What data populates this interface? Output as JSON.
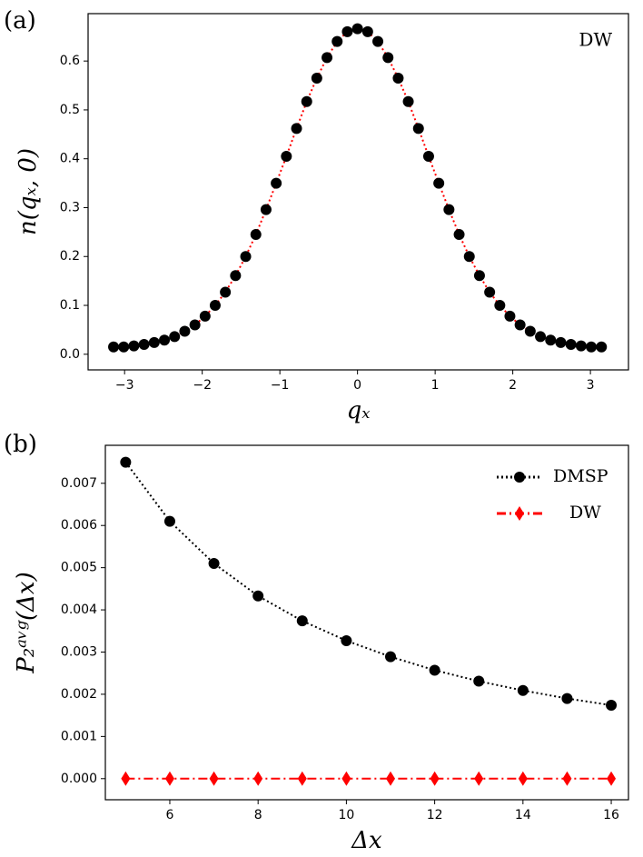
{
  "chart_data": [
    {
      "type": "scatter",
      "panel": "(a)",
      "annotation": "DW",
      "x_label": "qₓ",
      "y_label": "n(qₓ, 0)",
      "x": [
        -3.142,
        -3.011,
        -2.88,
        -2.749,
        -2.618,
        -2.487,
        -2.356,
        -2.225,
        -2.094,
        -1.963,
        -1.833,
        -1.702,
        -1.571,
        -1.44,
        -1.309,
        -1.178,
        -1.047,
        -0.916,
        -0.785,
        -0.654,
        -0.524,
        -0.393,
        -0.262,
        -0.131,
        0,
        0.131,
        0.262,
        0.393,
        0.524,
        0.654,
        0.785,
        0.916,
        1.047,
        1.178,
        1.309,
        1.44,
        1.571,
        1.702,
        1.833,
        1.963,
        2.094,
        2.225,
        2.356,
        2.487,
        2.618,
        2.749,
        2.88,
        3.011,
        3.142
      ],
      "series": [
        {
          "color": "#000000",
          "line_color": "#ff0000",
          "linestyle": "dotted",
          "marker": "circle",
          "values": [
            0.015,
            0.015,
            0.017,
            0.02,
            0.024,
            0.029,
            0.036,
            0.047,
            0.06,
            0.078,
            0.1,
            0.127,
            0.161,
            0.2,
            0.245,
            0.296,
            0.35,
            0.405,
            0.462,
            0.517,
            0.565,
            0.607,
            0.64,
            0.66,
            0.666,
            0.66,
            0.64,
            0.607,
            0.565,
            0.517,
            0.462,
            0.405,
            0.35,
            0.296,
            0.245,
            0.2,
            0.161,
            0.127,
            0.1,
            0.078,
            0.06,
            0.047,
            0.036,
            0.029,
            0.024,
            0.02,
            0.017,
            0.015,
            0.015
          ]
        }
      ],
      "xlim": [
        -3.47,
        3.49
      ],
      "ylim": [
        -0.032,
        0.697
      ],
      "xticks": [
        {
          "value": -3,
          "label": "−3"
        },
        {
          "value": -2,
          "label": "−2"
        },
        {
          "value": -1,
          "label": "−1"
        },
        0,
        1,
        2,
        3
      ],
      "yticks": [
        {
          "value": 0,
          "label": "0.0"
        },
        0.1,
        0.2,
        0.3,
        0.4,
        0.5,
        0.6
      ]
    },
    {
      "type": "line",
      "panel": "(b)",
      "legend": "upper right",
      "x_label": "Δx",
      "y_label": "P₂ᵃᵛᵍ(Δx)",
      "x": [
        5,
        6,
        7,
        8,
        9,
        10,
        11,
        12,
        13,
        14,
        15,
        16
      ],
      "series": [
        {
          "name": "DMSP",
          "color": "#000000",
          "line_color": "#000000",
          "linestyle": "dotted",
          "marker": "circle",
          "values": [
            0.0075,
            0.0061,
            0.0051,
            0.00433,
            0.00374,
            0.00327,
            0.00289,
            0.00257,
            0.00231,
            0.00209,
            0.0019,
            0.00174
          ]
        },
        {
          "name": "DW",
          "color": "#ff0000",
          "line_color": "#ff0000",
          "linestyle": "dashdot",
          "marker": "diamond",
          "values": [
            0,
            0,
            0,
            0,
            0,
            0,
            0,
            0,
            0,
            0,
            0,
            0
          ]
        }
      ],
      "xlim": [
        4.54,
        16.39
      ],
      "ylim": [
        -0.0005,
        0.0079
      ],
      "xticks": [
        6,
        8,
        10,
        12,
        14,
        16
      ],
      "yticks": [
        {
          "value": 0,
          "label": "0.000"
        },
        0.001,
        0.002,
        0.003,
        0.004,
        0.005,
        0.006,
        0.007
      ]
    }
  ]
}
